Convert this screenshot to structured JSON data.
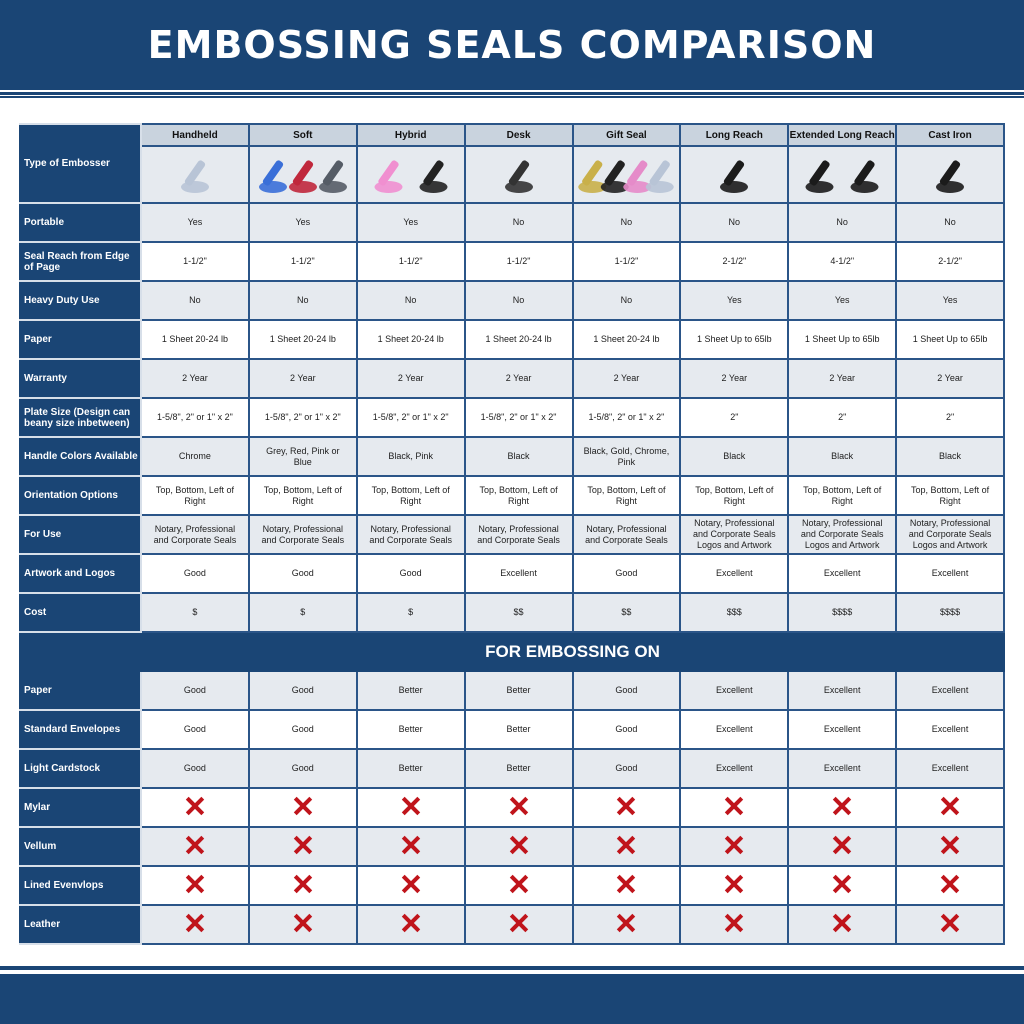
{
  "title": "EMBOSSING SEALS COMPARISON",
  "colors": {
    "brand": "#1a4575",
    "row_alt": "#e6eaef",
    "header": "#c9d3de",
    "cross": "#c0141b"
  },
  "row_header_label": "Type of Embosser",
  "columns": [
    "Handheld",
    "Soft",
    "Hybrid",
    "Desk",
    "Gift Seal",
    "Long Reach",
    "Extended Long Reach",
    "Cast Iron"
  ],
  "rows": [
    {
      "label": "Portable",
      "values": [
        "Yes",
        "Yes",
        "Yes",
        "No",
        "No",
        "No",
        "No",
        "No"
      ]
    },
    {
      "label": "Seal Reach from Edge of Page",
      "values": [
        "1-1/2\"",
        "1-1/2\"",
        "1-1/2\"",
        "1-1/2\"",
        "1-1/2\"",
        "2-1/2\"",
        "4-1/2\"",
        "2-1/2\""
      ]
    },
    {
      "label": "Heavy Duty Use",
      "values": [
        "No",
        "No",
        "No",
        "No",
        "No",
        "Yes",
        "Yes",
        "Yes"
      ]
    },
    {
      "label": "Paper",
      "values": [
        "1 Sheet 20-24 lb",
        "1 Sheet 20-24 lb",
        "1 Sheet 20-24 lb",
        "1 Sheet 20-24 lb",
        "1 Sheet 20-24 lb",
        "1 Sheet Up to 65lb",
        "1 Sheet Up to 65lb",
        "1 Sheet Up to 65lb"
      ]
    },
    {
      "label": "Warranty",
      "values": [
        "2 Year",
        "2 Year",
        "2 Year",
        "2 Year",
        "2 Year",
        "2 Year",
        "2 Year",
        "2 Year"
      ]
    },
    {
      "label": "Plate Size (Design can beany size inbetween)",
      "values": [
        "1-5/8\", 2\" or 1\" x 2\"",
        "1-5/8\", 2\" or 1\" x 2\"",
        "1-5/8\", 2\" or 1\" x 2\"",
        "1-5/8\", 2\" or 1\" x 2\"",
        "1-5/8\", 2\" or 1\" x 2\"",
        "2\"",
        "2\"",
        "2\""
      ]
    },
    {
      "label": "Handle Colors Available",
      "values": [
        "Chrome",
        "Grey, Red, Pink or Blue",
        "Black, Pink",
        "Black",
        "Black, Gold, Chrome, Pink",
        "Black",
        "Black",
        "Black"
      ]
    },
    {
      "label": "Orientation Options",
      "values": [
        "Top, Bottom, Left of Right",
        "Top, Bottom, Left of Right",
        "Top, Bottom, Left of Right",
        "Top, Bottom, Left of Right",
        "Top, Bottom, Left of Right",
        "Top, Bottom, Left of Right",
        "Top, Bottom, Left of Right",
        "Top, Bottom, Left of Right"
      ]
    },
    {
      "label": "For Use",
      "values": [
        "Notary, Professional and Corporate Seals",
        "Notary, Professional and Corporate Seals",
        "Notary, Professional and Corporate Seals",
        "Notary, Professional and Corporate Seals",
        "Notary, Professional and Corporate Seals",
        "Notary, Professional and Corporate Seals Logos and Artwork",
        "Notary, Professional and Corporate Seals Logos and Artwork",
        "Notary, Professional and Corporate Seals Logos and Artwork"
      ]
    },
    {
      "label": "Artwork and Logos",
      "values": [
        "Good",
        "Good",
        "Good",
        "Excellent",
        "Good",
        "Excellent",
        "Excellent",
        "Excellent"
      ]
    },
    {
      "label": "Cost",
      "values": [
        "$",
        "$",
        "$",
        "$$",
        "$$",
        "$$$",
        "$$$$",
        "$$$$"
      ]
    }
  ],
  "section_title": "FOR EMBOSSING ON",
  "embossing_rows": [
    {
      "label": "Paper",
      "values": [
        "Good",
        "Good",
        "Better",
        "Better",
        "Good",
        "Excellent",
        "Excellent",
        "Excellent"
      ]
    },
    {
      "label": "Standard Envelopes",
      "values": [
        "Good",
        "Good",
        "Better",
        "Better",
        "Good",
        "Excellent",
        "Excellent",
        "Excellent"
      ]
    },
    {
      "label": "Light Cardstock",
      "values": [
        "Good",
        "Good",
        "Better",
        "Better",
        "Good",
        "Excellent",
        "Excellent",
        "Excellent"
      ]
    },
    {
      "label": "Mylar",
      "values": [
        "x",
        "x",
        "x",
        "x",
        "x",
        "x",
        "x",
        "x"
      ]
    },
    {
      "label": "Vellum",
      "values": [
        "x",
        "x",
        "x",
        "x",
        "x",
        "x",
        "x",
        "x"
      ]
    },
    {
      "label": "Lined Evenvlops",
      "values": [
        "x",
        "x",
        "x",
        "x",
        "x",
        "x",
        "x",
        "x"
      ]
    },
    {
      "label": "Leather",
      "values": [
        "x",
        "x",
        "x",
        "x",
        "x",
        "x",
        "x",
        "x"
      ]
    }
  ],
  "product_images": [
    {
      "icon": "handheld-embosser-image",
      "colors": [
        "#b8c4d6"
      ]
    },
    {
      "icon": "soft-embosser-image",
      "colors": [
        "#3a6fd8",
        "#c0283c",
        "#555c66"
      ]
    },
    {
      "icon": "hybrid-embosser-image",
      "colors": [
        "#f08fd0",
        "#222"
      ]
    },
    {
      "icon": "desk-embosser-image",
      "colors": [
        "#333"
      ]
    },
    {
      "icon": "gift-seal-embosser-image",
      "colors": [
        "#c9b04a",
        "#222",
        "#e58bc9",
        "#b8c4d6"
      ]
    },
    {
      "icon": "long-reach-embosser-image",
      "colors": [
        "#1b1b1b"
      ]
    },
    {
      "icon": "extended-long-reach-embosser-image",
      "colors": [
        "#1b1b1b",
        "#1b1b1b"
      ]
    },
    {
      "icon": "cast-iron-embosser-image",
      "colors": [
        "#1b1b1b"
      ]
    }
  ]
}
